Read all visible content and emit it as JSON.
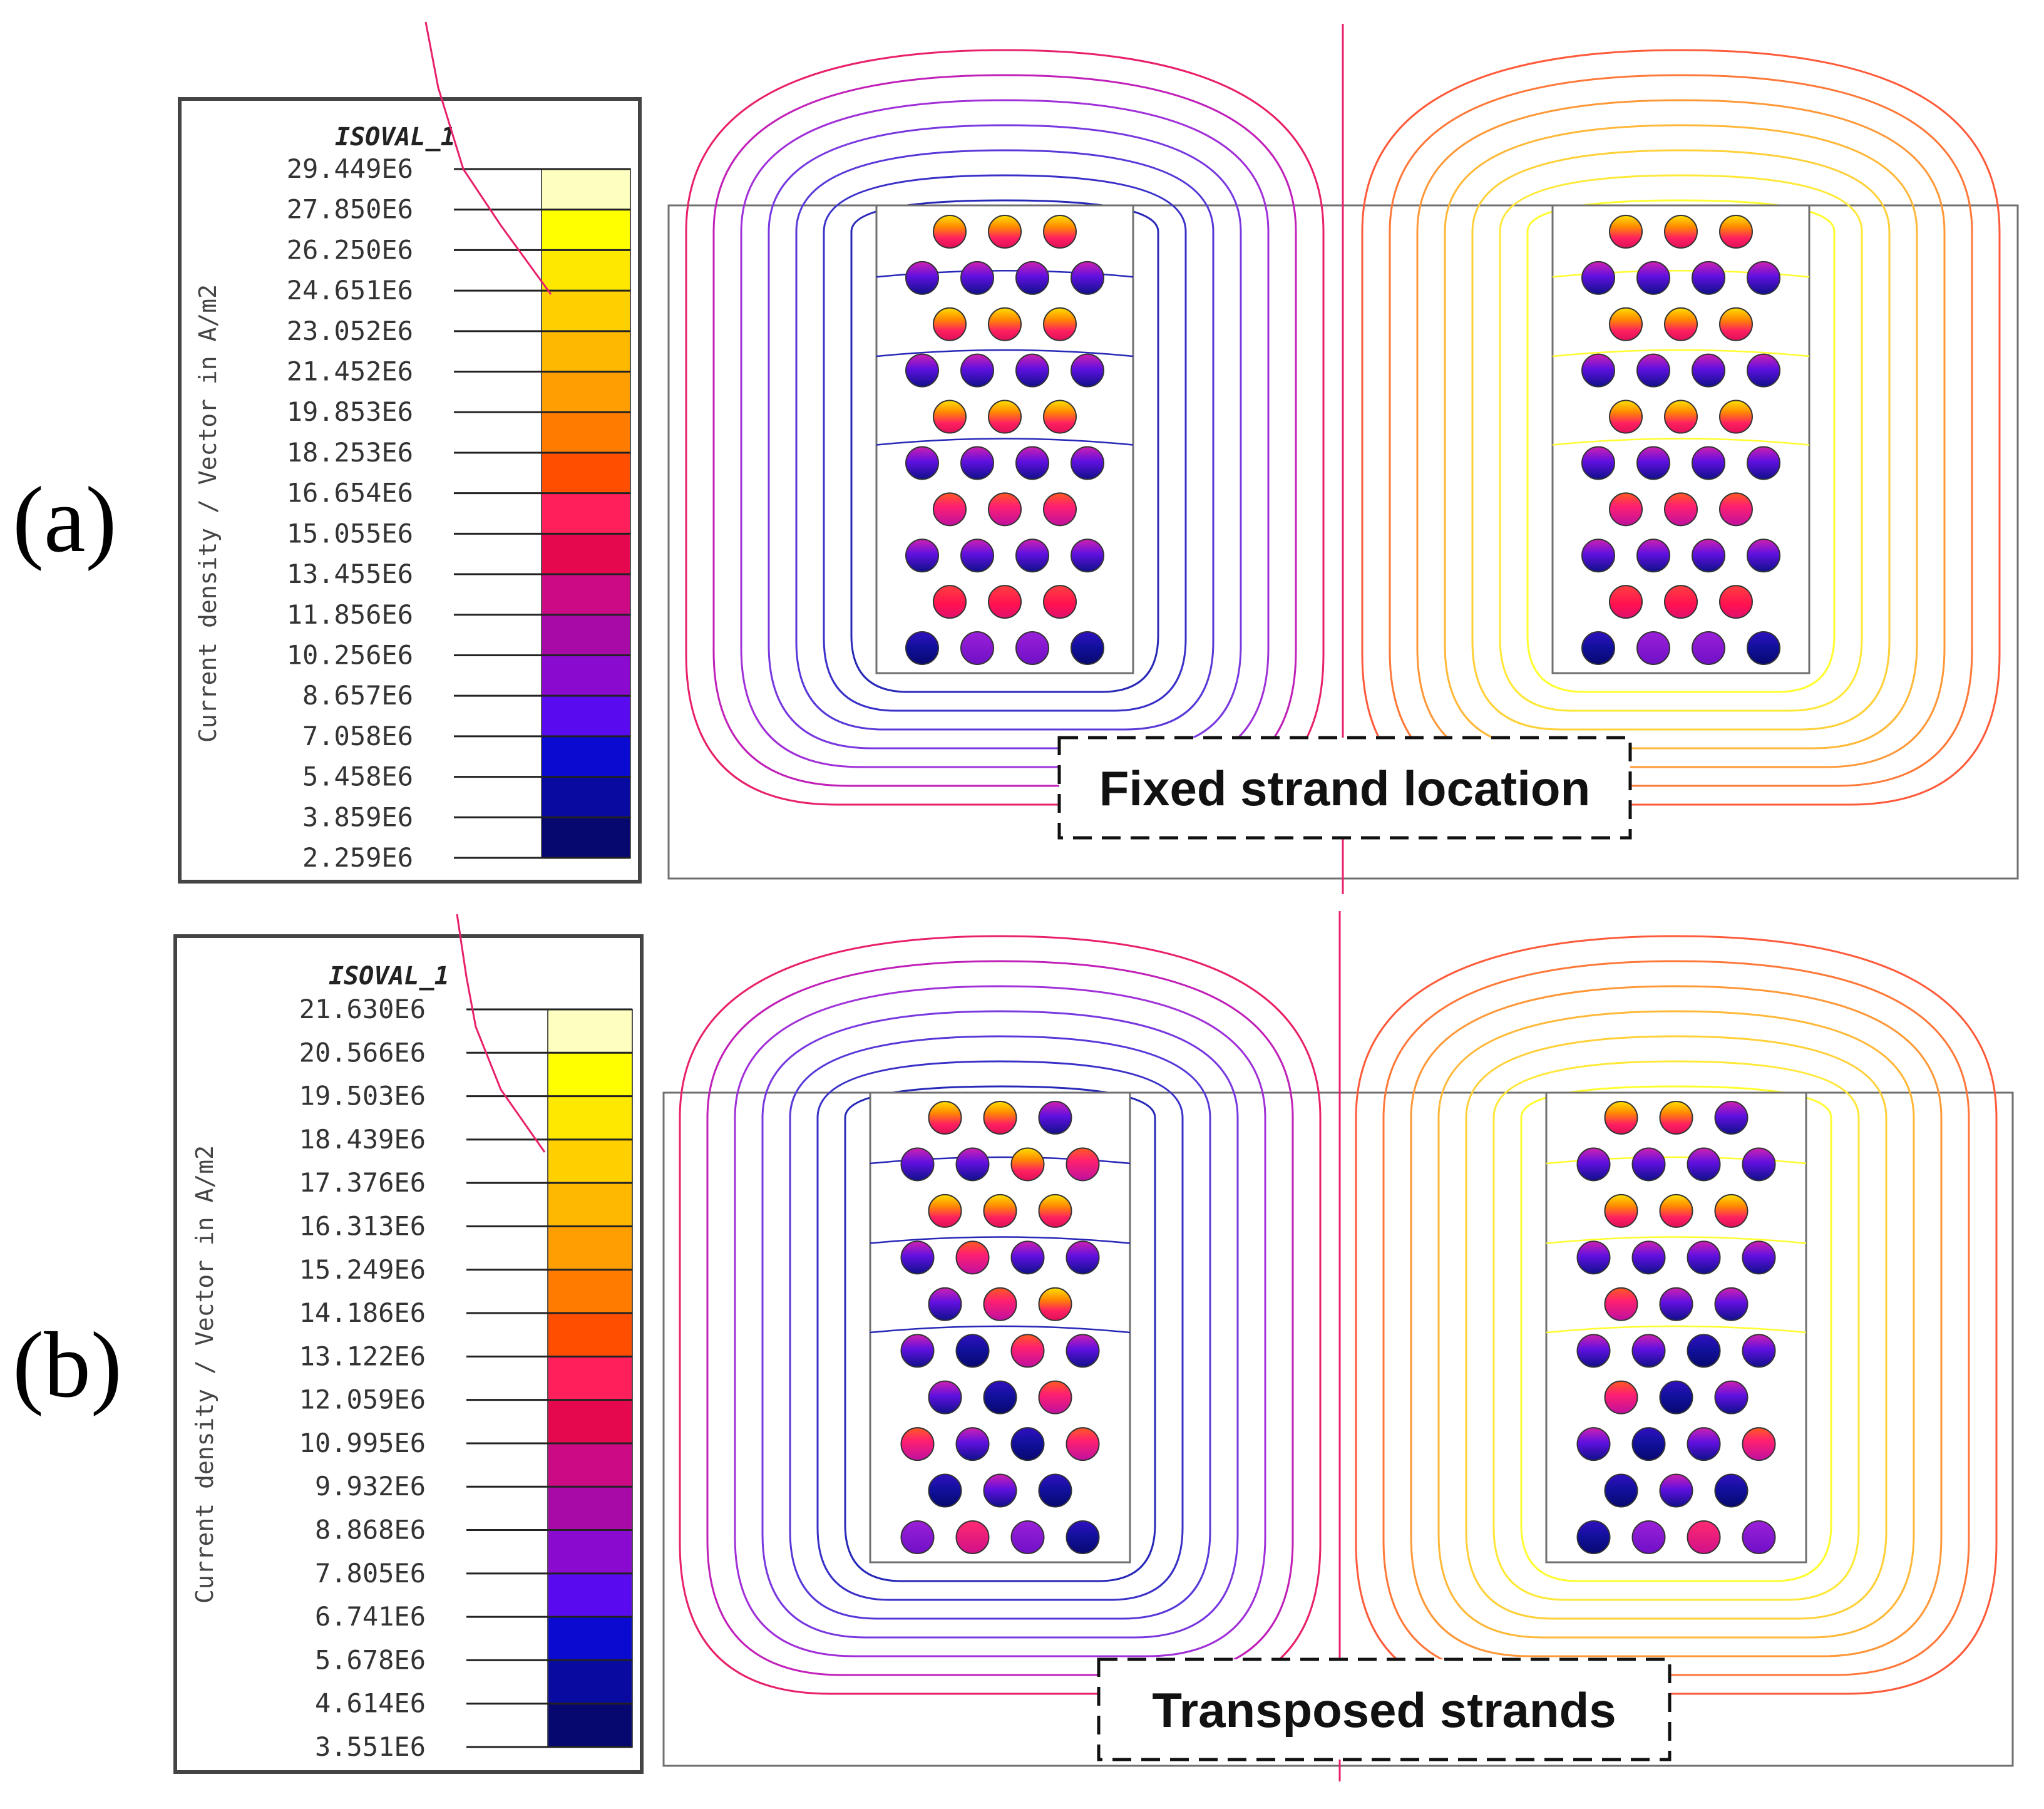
{
  "panels": [
    {
      "label": "(a)",
      "caption": "Fixed strand location",
      "legend": {
        "title": "ISOVAL_1",
        "axis_label": "Current density / Vector in A/m2",
        "values": [
          "29.449E6",
          "27.850E6",
          "26.250E6",
          "24.651E6",
          "23.052E6",
          "21.452E6",
          "19.853E6",
          "18.253E6",
          "16.654E6",
          "15.055E6",
          "13.455E6",
          "11.856E6",
          "10.256E6",
          "8.657E6",
          "7.058E6",
          "5.458E6",
          "3.859E6",
          "2.259E6"
        ]
      }
    },
    {
      "label": "(b)",
      "caption": "Transposed strands",
      "legend": {
        "title": "ISOVAL_1",
        "axis_label": "Current density / Vector in A/m2",
        "values": [
          "21.630E6",
          "20.566E6",
          "19.503E6",
          "18.439E6",
          "17.376E6",
          "16.313E6",
          "15.249E6",
          "14.186E6",
          "13.122E6",
          "12.059E6",
          "10.995E6",
          "9.932E6",
          "8.868E6",
          "7.805E6",
          "6.741E6",
          "5.678E6",
          "4.614E6",
          "3.551E6"
        ]
      }
    }
  ],
  "colors": {
    "scale": [
      "#fefec0",
      "#ffff00",
      "#ffe800",
      "#ffd000",
      "#ffb800",
      "#ff9e00",
      "#ff7c00",
      "#ff4e00",
      "#ff1f5a",
      "#e6084e",
      "#cc0a86",
      "#a80aa8",
      "#8a0ad0",
      "#5a0aee",
      "#0a0ad0",
      "#080aa0",
      "#060870"
    ],
    "contour_left": [
      "#e8206a",
      "#c020b8",
      "#a030d8",
      "#7838e0",
      "#5838d8",
      "#3a30c8",
      "#2828b8"
    ],
    "contour_right": [
      "#ff5a3a",
      "#ff7838",
      "#ff9838",
      "#ffb838",
      "#ffd038",
      "#ffe838",
      "#ffff30"
    ],
    "frame": "#707070"
  }
}
